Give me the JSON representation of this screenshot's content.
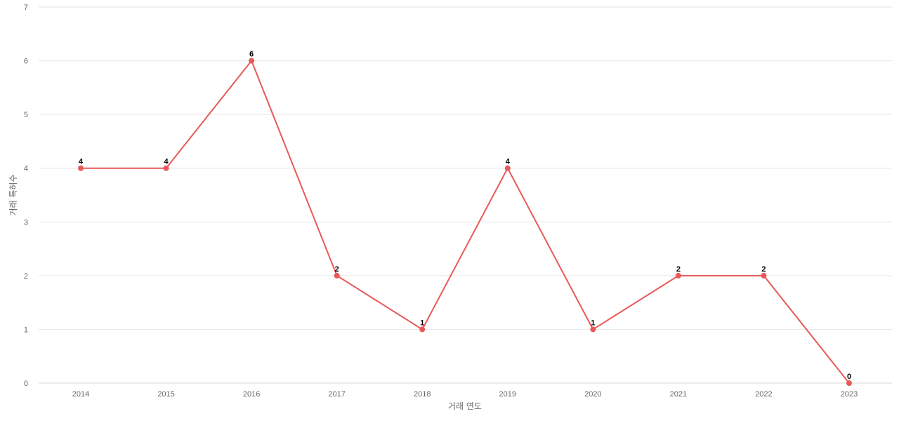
{
  "chart_data": {
    "type": "line",
    "title": "",
    "xlabel": "거래 연도",
    "ylabel": "거래 특허수",
    "categories": [
      "2014",
      "2015",
      "2016",
      "2017",
      "2018",
      "2019",
      "2020",
      "2021",
      "2022",
      "2023"
    ],
    "series": [
      {
        "values": [
          4,
          4,
          6,
          2,
          1,
          4,
          1,
          2,
          2,
          0
        ],
        "color": "#e8595a"
      }
    ],
    "ylim": [
      0,
      7
    ],
    "yticks": [
      "0",
      "1",
      "2",
      "3",
      "4",
      "5",
      "6",
      "7"
    ],
    "grid": true,
    "data_labels": true
  }
}
